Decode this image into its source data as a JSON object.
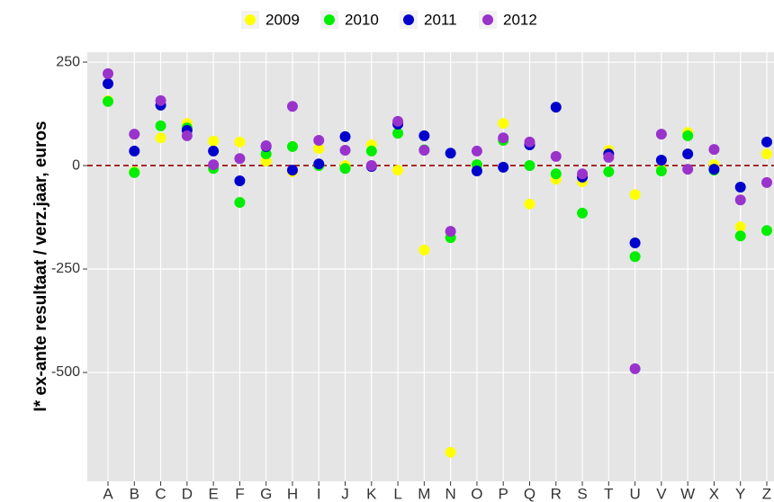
{
  "chart_data": {
    "type": "scatter",
    "y_label": "I* ex-ante resultaat / verz.jaar, euros",
    "categories": [
      "A",
      "B",
      "C",
      "D",
      "E",
      "F",
      "G",
      "H",
      "I",
      "J",
      "K",
      "L",
      "M",
      "N",
      "O",
      "P",
      "Q",
      "R",
      "S",
      "T",
      "U",
      "V",
      "W",
      "X",
      "Y",
      "Z"
    ],
    "series": [
      {
        "name": "2009",
        "color": "#ffff00",
        "values": [
          157,
          -15,
          67,
          102,
          59,
          57,
          11,
          -15,
          41,
          0,
          50,
          -11,
          -204,
          -693,
          -4,
          102,
          -93,
          -33,
          -39,
          37,
          -70,
          -10,
          80,
          2,
          -148,
          28
        ]
      },
      {
        "name": "2010",
        "color": "#00ee00",
        "values": [
          155,
          -17,
          96,
          91,
          -7,
          -89,
          28,
          46,
          0,
          -7,
          35,
          78,
          38,
          -174,
          2,
          61,
          0,
          -20,
          -115,
          -15,
          -220,
          -13,
          72,
          -11,
          -170,
          -157
        ]
      },
      {
        "name": "2011",
        "color": "#0000cc",
        "values": [
          198,
          35,
          146,
          85,
          35,
          -37,
          46,
          -11,
          4,
          70,
          -2,
          100,
          72,
          30,
          -13,
          -4,
          50,
          141,
          -28,
          28,
          -187,
          13,
          28,
          -9,
          -52,
          57
        ]
      },
      {
        "name": "2012",
        "color": "#9933cc",
        "values": [
          222,
          76,
          157,
          72,
          2,
          17,
          48,
          143,
          61,
          37,
          0,
          107,
          37,
          -159,
          35,
          67,
          57,
          22,
          -20,
          20,
          -491,
          76,
          -9,
          39,
          -83,
          -41
        ]
      }
    ],
    "ylim": [
      -763,
      274
    ],
    "yticks": [
      250,
      0,
      -250,
      -500
    ],
    "hline": 0,
    "hline_color": "#a52a2a",
    "grid": true,
    "legend": "top"
  }
}
